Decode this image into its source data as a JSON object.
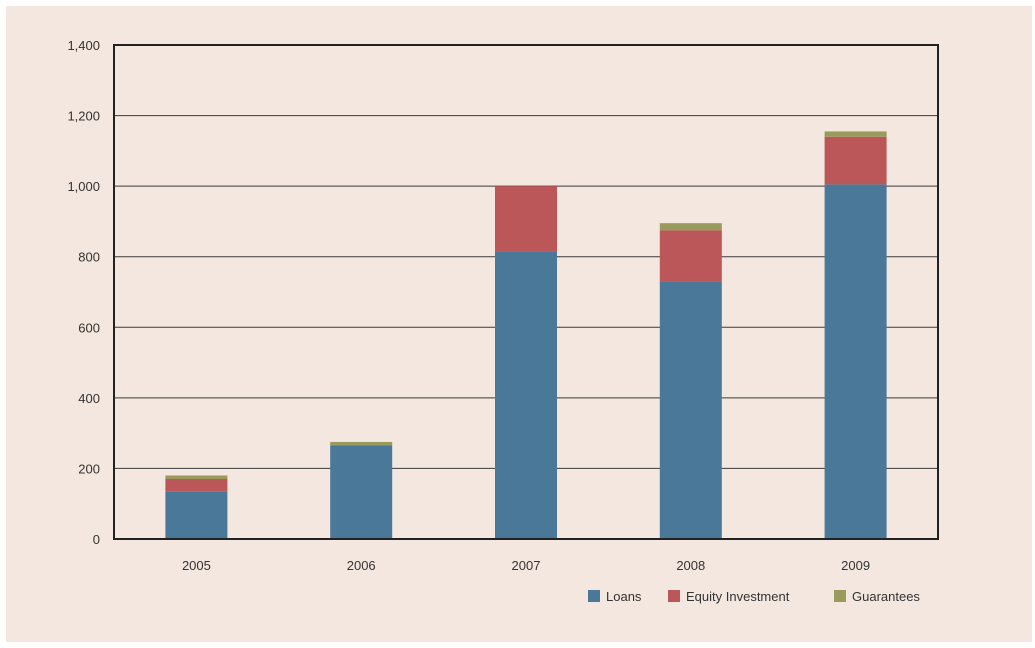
{
  "chart_data": {
    "type": "bar",
    "stacked": true,
    "categories": [
      "2005",
      "2006",
      "2007",
      "2008",
      "2009"
    ],
    "series": [
      {
        "name": "Loans",
        "values": [
          135,
          265,
          815,
          730,
          1005
        ],
        "color": "#4a7898"
      },
      {
        "name": "Equity Investment",
        "values": [
          35,
          0,
          185,
          145,
          135
        ],
        "color": "#bb5758"
      },
      {
        "name": "Guarantees",
        "values": [
          10,
          10,
          0,
          20,
          15
        ],
        "color": "#999a5c"
      }
    ],
    "ylim": [
      0,
      1400
    ],
    "yticks": [
      0,
      200,
      400,
      600,
      800,
      1000,
      1200,
      1400
    ],
    "ytick_labels": [
      "0",
      "200",
      "400",
      "600",
      "800",
      "1,000",
      "1,200",
      "1,400"
    ],
    "grid": true,
    "legend_position": "bottom-right",
    "title": "",
    "xlabel": "",
    "ylabel": ""
  }
}
